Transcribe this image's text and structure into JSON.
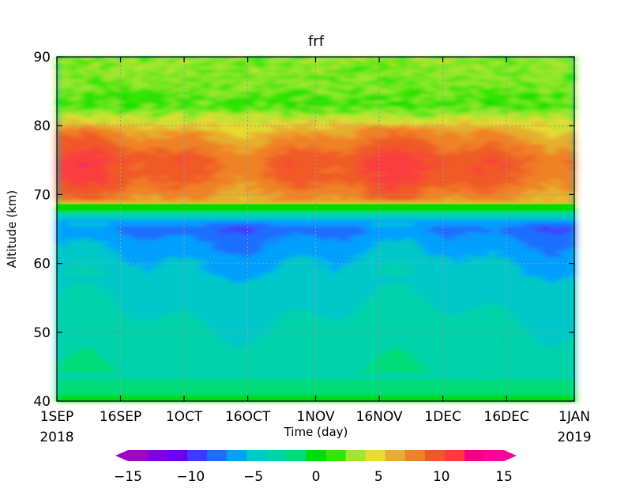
{
  "chart_data": {
    "type": "heatmap",
    "title": "frf",
    "xlabel": "Time (day)",
    "ylabel": "Altitude (km)",
    "xlim": [
      "2018-09-01",
      "2019-01-01"
    ],
    "ylim": [
      40,
      90
    ],
    "grid": true,
    "x_ticks": [
      {
        "date": "2018-09-01",
        "label": "1SEP",
        "sublabel": "2018"
      },
      {
        "date": "2018-09-16",
        "label": "16SEP",
        "sublabel": ""
      },
      {
        "date": "2018-10-01",
        "label": "1OCT",
        "sublabel": ""
      },
      {
        "date": "2018-10-16",
        "label": "16OCT",
        "sublabel": ""
      },
      {
        "date": "2018-11-01",
        "label": "1NOV",
        "sublabel": ""
      },
      {
        "date": "2018-11-16",
        "label": "16NOV",
        "sublabel": ""
      },
      {
        "date": "2018-12-01",
        "label": "1DEC",
        "sublabel": ""
      },
      {
        "date": "2018-12-16",
        "label": "16DEC",
        "sublabel": ""
      },
      {
        "date": "2019-01-01",
        "label": "1JAN",
        "sublabel": "2019"
      }
    ],
    "y_ticks": [
      {
        "value": 40,
        "label": "40"
      },
      {
        "value": 50,
        "label": "50"
      },
      {
        "value": 60,
        "label": "60"
      },
      {
        "value": 70,
        "label": "70"
      },
      {
        "value": 80,
        "label": "80"
      },
      {
        "value": 90,
        "label": "90"
      }
    ],
    "colorbar": {
      "min": -15,
      "max": 15,
      "step": 1.5,
      "extend": "both",
      "ticks": [
        {
          "value": -15,
          "label": "−15"
        },
        {
          "value": -10,
          "label": "−10"
        },
        {
          "value": -5,
          "label": "−5"
        },
        {
          "value": 0,
          "label": "0"
        },
        {
          "value": 5,
          "label": "5"
        },
        {
          "value": 10,
          "label": "10"
        },
        {
          "value": 15,
          "label": "15"
        }
      ],
      "colors": [
        "#a000c8",
        "#8200dc",
        "#6e00f0",
        "#3c3cff",
        "#1e6eff",
        "#00a0ff",
        "#00c8c8",
        "#00d2aa",
        "#00dc78",
        "#00dc00",
        "#32e600",
        "#a0e632",
        "#e6dc32",
        "#e6af2d",
        "#f08228",
        "#f05a28",
        "#fa3c3c",
        "#f00082",
        "#ff0099"
      ]
    },
    "field_profile": [
      {
        "altitude": 40,
        "value": 0
      },
      {
        "altitude": 42,
        "value": -2.8
      },
      {
        "altitude": 46,
        "value": -3.5
      },
      {
        "altitude": 56,
        "value": -5
      },
      {
        "altitude": 60,
        "value": -5.8
      },
      {
        "altitude": 63,
        "value": -7
      },
      {
        "altitude": 65,
        "value": -8.2
      },
      {
        "altitude": 66.8,
        "value": -5
      },
      {
        "altitude": 67.6,
        "value": -2
      },
      {
        "altitude": 68.2,
        "value": 0.5
      },
      {
        "altitude": 69,
        "value": 6
      },
      {
        "altitude": 72,
        "value": 8
      },
      {
        "altitude": 75,
        "value": 8.5
      },
      {
        "altitude": 79,
        "value": 6
      },
      {
        "altitude": 81,
        "value": 3
      },
      {
        "altitude": 83,
        "value": 0.5
      },
      {
        "altitude": 86,
        "value": 1.5
      },
      {
        "altitude": 90,
        "value": 2
      }
    ]
  }
}
